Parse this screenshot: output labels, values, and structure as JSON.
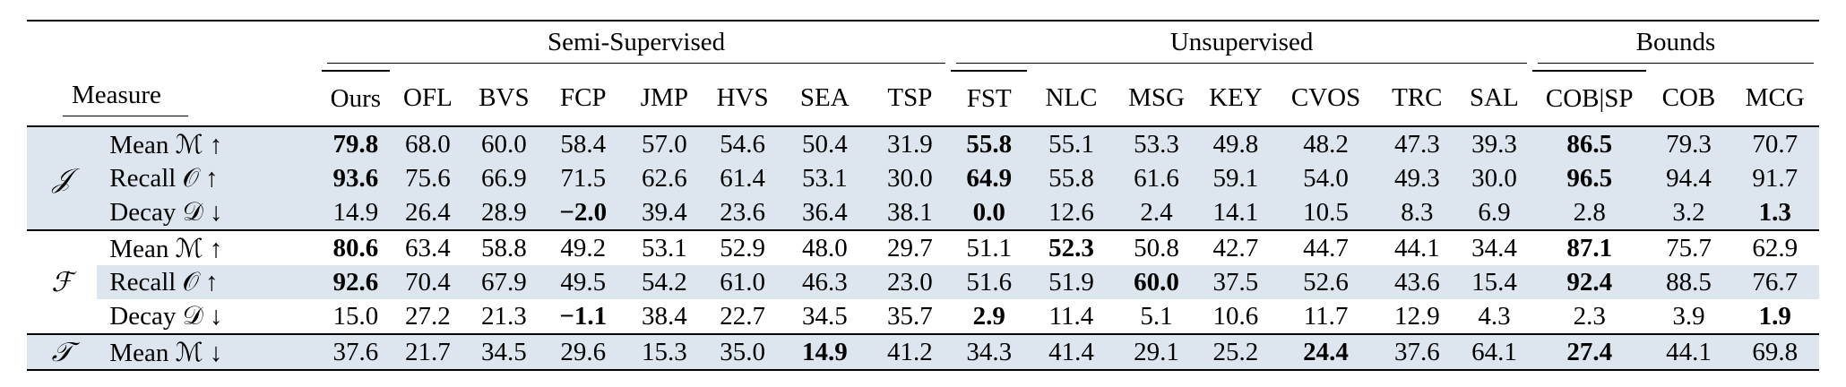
{
  "groups": [
    {
      "label": "Semi-Supervised",
      "span": 8
    },
    {
      "label": "Unsupervised",
      "span": 7
    },
    {
      "label": "Bounds",
      "span": 3
    }
  ],
  "measure_header": "Measure",
  "columns": [
    "Ours",
    "OFL",
    "BVS",
    "FCP",
    "JMP",
    "HVS",
    "SEA",
    "TSP",
    "FST",
    "NLC",
    "MSG",
    "KEY",
    "CVOS",
    "TRC",
    "SAL",
    "COB|SP",
    "COB",
    "MCG"
  ],
  "rows": [
    {
      "group": "𝒥",
      "metric": "Mean ℳ ↑",
      "shaded": true,
      "values": [
        "79.8",
        "68.0",
        "60.0",
        "58.4",
        "57.0",
        "54.6",
        "50.4",
        "31.9",
        "55.8",
        "55.1",
        "53.3",
        "49.8",
        "48.2",
        "47.3",
        "39.3",
        "86.5",
        "79.3",
        "70.7"
      ],
      "bold": [
        0,
        8,
        15
      ]
    },
    {
      "group": "",
      "metric": "Recall 𝒪 ↑",
      "shaded": true,
      "values": [
        "93.6",
        "75.6",
        "66.9",
        "71.5",
        "62.6",
        "61.4",
        "53.1",
        "30.0",
        "64.9",
        "55.8",
        "61.6",
        "59.1",
        "54.0",
        "49.3",
        "30.0",
        "96.5",
        "94.4",
        "91.7"
      ],
      "bold": [
        0,
        8,
        15
      ]
    },
    {
      "group": "",
      "metric": "Decay 𝒟 ↓",
      "shaded": true,
      "values": [
        "14.9",
        "26.4",
        "28.9",
        "−2.0",
        "39.4",
        "23.6",
        "36.4",
        "38.1",
        "0.0",
        "12.6",
        "2.4",
        "14.1",
        "10.5",
        "8.3",
        "6.9",
        "2.8",
        "3.2",
        "1.3"
      ],
      "bold": [
        3,
        8,
        17
      ]
    },
    {
      "group": "ℱ",
      "metric": "Mean ℳ ↑",
      "shaded": false,
      "values": [
        "80.6",
        "63.4",
        "58.8",
        "49.2",
        "53.1",
        "52.9",
        "48.0",
        "29.7",
        "51.1",
        "52.3",
        "50.8",
        "42.7",
        "44.7",
        "44.1",
        "34.4",
        "87.1",
        "75.7",
        "62.9"
      ],
      "bold": [
        0,
        9,
        15
      ]
    },
    {
      "group": "",
      "metric": "Recall 𝒪 ↑",
      "shaded": true,
      "values": [
        "92.6",
        "70.4",
        "67.9",
        "49.5",
        "54.2",
        "61.0",
        "46.3",
        "23.0",
        "51.6",
        "51.9",
        "60.0",
        "37.5",
        "52.6",
        "43.6",
        "15.4",
        "92.4",
        "88.5",
        "76.7"
      ],
      "bold": [
        0,
        10,
        15
      ]
    },
    {
      "group": "",
      "metric": "Decay 𝒟 ↓",
      "shaded": false,
      "values": [
        "15.0",
        "27.2",
        "21.3",
        "−1.1",
        "38.4",
        "22.7",
        "34.5",
        "35.7",
        "2.9",
        "11.4",
        "5.1",
        "10.6",
        "11.7",
        "12.9",
        "4.3",
        "2.3",
        "3.9",
        "1.9"
      ],
      "bold": [
        3,
        8,
        17
      ]
    },
    {
      "group": "𝒯",
      "metric": "Mean ℳ ↓",
      "shaded": true,
      "values": [
        "37.6",
        "21.7",
        "34.5",
        "29.6",
        "15.3",
        "35.0",
        "14.9",
        "41.2",
        "34.3",
        "41.4",
        "29.1",
        "25.2",
        "24.4",
        "37.6",
        "64.1",
        "27.4",
        "44.1",
        "69.8"
      ],
      "bold": [
        6,
        12,
        15
      ]
    }
  ]
}
